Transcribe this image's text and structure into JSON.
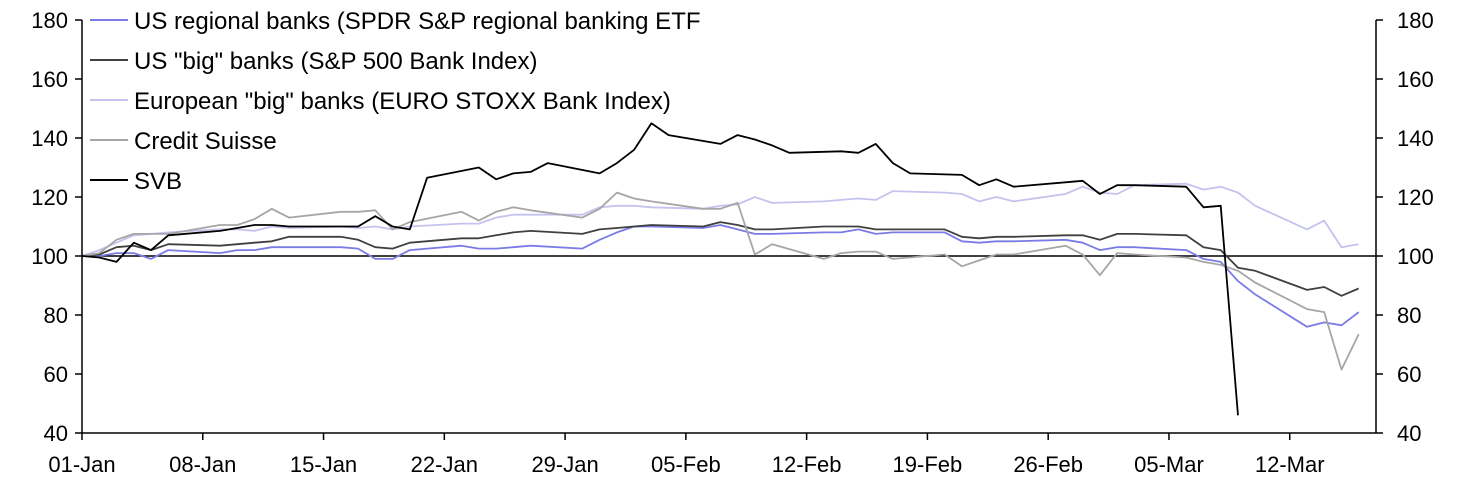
{
  "chart_data": {
    "type": "line",
    "title": "",
    "xlabel": "",
    "ylabel": "",
    "ylim": [
      40,
      180
    ],
    "y_ticks": [
      40,
      60,
      80,
      100,
      120,
      140,
      160,
      180
    ],
    "y_tick_labels": [
      "40",
      "60",
      "80",
      "100",
      "120",
      "140",
      "160",
      "180"
    ],
    "x_ticks": [
      "2023-01-01",
      "2023-01-08",
      "2023-01-15",
      "2023-01-22",
      "2023-01-29",
      "2023-02-05",
      "2023-02-12",
      "2023-02-19",
      "2023-02-26",
      "2023-03-05",
      "2023-03-12"
    ],
    "x_tick_labels": [
      "01-Jan",
      "08-Jan",
      "15-Jan",
      "22-Jan",
      "29-Jan",
      "05-Feb",
      "12-Feb",
      "19-Feb",
      "26-Feb",
      "05-Mar",
      "12-Mar"
    ],
    "xlim": [
      "2023-01-01",
      "2023-03-17"
    ],
    "reference_line": 100,
    "legend_position": "top-left",
    "grid": false,
    "series": [
      {
        "name": "US regional banks (SPDR S&P regional banking ETF",
        "color": "#7b7be6",
        "points": [
          [
            "2023-01-01",
            100
          ],
          [
            "2023-01-02",
            100
          ],
          [
            "2023-01-03",
            101
          ],
          [
            "2023-01-04",
            101
          ],
          [
            "2023-01-05",
            99
          ],
          [
            "2023-01-06",
            102
          ],
          [
            "2023-01-09",
            101
          ],
          [
            "2023-01-10",
            102
          ],
          [
            "2023-01-11",
            102
          ],
          [
            "2023-01-12",
            103
          ],
          [
            "2023-01-13",
            103
          ],
          [
            "2023-01-16",
            103
          ],
          [
            "2023-01-17",
            102.5
          ],
          [
            "2023-01-18",
            99
          ],
          [
            "2023-01-19",
            99
          ],
          [
            "2023-01-20",
            102
          ],
          [
            "2023-01-23",
            103.5
          ],
          [
            "2023-01-24",
            102.5
          ],
          [
            "2023-01-25",
            102.5
          ],
          [
            "2023-01-26",
            103
          ],
          [
            "2023-01-27",
            103.5
          ],
          [
            "2023-01-30",
            102.5
          ],
          [
            "2023-01-31",
            105.5
          ],
          [
            "2023-02-01",
            108
          ],
          [
            "2023-02-02",
            110
          ],
          [
            "2023-02-03",
            110
          ],
          [
            "2023-02-06",
            109.5
          ],
          [
            "2023-02-07",
            110.5
          ],
          [
            "2023-02-08",
            109
          ],
          [
            "2023-02-09",
            107.5
          ],
          [
            "2023-02-10",
            107.5
          ],
          [
            "2023-02-13",
            108
          ],
          [
            "2023-02-14",
            108
          ],
          [
            "2023-02-15",
            109
          ],
          [
            "2023-02-16",
            107.5
          ],
          [
            "2023-02-17",
            108
          ],
          [
            "2023-02-20",
            108
          ],
          [
            "2023-02-21",
            105
          ],
          [
            "2023-02-22",
            104.5
          ],
          [
            "2023-02-23",
            105
          ],
          [
            "2023-02-24",
            105
          ],
          [
            "2023-02-27",
            105.5
          ],
          [
            "2023-02-28",
            104.5
          ],
          [
            "2023-03-01",
            102
          ],
          [
            "2023-03-02",
            103
          ],
          [
            "2023-03-03",
            103
          ],
          [
            "2023-03-06",
            102
          ],
          [
            "2023-03-07",
            99
          ],
          [
            "2023-03-08",
            98
          ],
          [
            "2023-03-09",
            91.5
          ],
          [
            "2023-03-10",
            87
          ],
          [
            "2023-03-13",
            76
          ],
          [
            "2023-03-14",
            77.5
          ],
          [
            "2023-03-15",
            76.5
          ],
          [
            "2023-03-16",
            81
          ]
        ]
      },
      {
        "name": "US \"big\" banks (S&P 500 Bank Index)",
        "color": "#404040",
        "points": [
          [
            "2023-01-01",
            100
          ],
          [
            "2023-01-02",
            100.5
          ],
          [
            "2023-01-03",
            103
          ],
          [
            "2023-01-04",
            103.5
          ],
          [
            "2023-01-05",
            102
          ],
          [
            "2023-01-06",
            104
          ],
          [
            "2023-01-09",
            103.5
          ],
          [
            "2023-01-10",
            104
          ],
          [
            "2023-01-11",
            104.5
          ],
          [
            "2023-01-12",
            105
          ],
          [
            "2023-01-13",
            106.5
          ],
          [
            "2023-01-16",
            106.5
          ],
          [
            "2023-01-17",
            105.5
          ],
          [
            "2023-01-18",
            103
          ],
          [
            "2023-01-19",
            102.5
          ],
          [
            "2023-01-20",
            104.5
          ],
          [
            "2023-01-23",
            106
          ],
          [
            "2023-01-24",
            106
          ],
          [
            "2023-01-25",
            107
          ],
          [
            "2023-01-26",
            108
          ],
          [
            "2023-01-27",
            108.5
          ],
          [
            "2023-01-30",
            107.5
          ],
          [
            "2023-01-31",
            109
          ],
          [
            "2023-02-01",
            109.5
          ],
          [
            "2023-02-02",
            110
          ],
          [
            "2023-02-03",
            110.5
          ],
          [
            "2023-02-06",
            110
          ],
          [
            "2023-02-07",
            111.5
          ],
          [
            "2023-02-08",
            110.5
          ],
          [
            "2023-02-09",
            109
          ],
          [
            "2023-02-10",
            109
          ],
          [
            "2023-02-13",
            110
          ],
          [
            "2023-02-14",
            110
          ],
          [
            "2023-02-15",
            110
          ],
          [
            "2023-02-16",
            109
          ],
          [
            "2023-02-17",
            109
          ],
          [
            "2023-02-20",
            109
          ],
          [
            "2023-02-21",
            106.5
          ],
          [
            "2023-02-22",
            106
          ],
          [
            "2023-02-23",
            106.5
          ],
          [
            "2023-02-24",
            106.5
          ],
          [
            "2023-02-27",
            107
          ],
          [
            "2023-02-28",
            107
          ],
          [
            "2023-03-01",
            105.5
          ],
          [
            "2023-03-02",
            107.5
          ],
          [
            "2023-03-03",
            107.5
          ],
          [
            "2023-03-06",
            107
          ],
          [
            "2023-03-07",
            103
          ],
          [
            "2023-03-08",
            102
          ],
          [
            "2023-03-09",
            96
          ],
          [
            "2023-03-10",
            95
          ],
          [
            "2023-03-13",
            88.5
          ],
          [
            "2023-03-14",
            89.5
          ],
          [
            "2023-03-15",
            86.5
          ],
          [
            "2023-03-16",
            89
          ]
        ]
      },
      {
        "name": "European \"big\" banks (EURO STOXX Bank Index)",
        "color": "#c3c3ee",
        "points": [
          [
            "2023-01-01",
            100
          ],
          [
            "2023-01-02",
            102
          ],
          [
            "2023-01-03",
            104.5
          ],
          [
            "2023-01-04",
            107
          ],
          [
            "2023-01-05",
            107.5
          ],
          [
            "2023-01-06",
            108
          ],
          [
            "2023-01-09",
            109
          ],
          [
            "2023-01-10",
            109
          ],
          [
            "2023-01-11",
            108.5
          ],
          [
            "2023-01-12",
            110
          ],
          [
            "2023-01-13",
            109.5
          ],
          [
            "2023-01-16",
            110
          ],
          [
            "2023-01-17",
            109.5
          ],
          [
            "2023-01-18",
            110
          ],
          [
            "2023-01-19",
            109
          ],
          [
            "2023-01-20",
            110
          ],
          [
            "2023-01-23",
            111
          ],
          [
            "2023-01-24",
            111
          ],
          [
            "2023-01-25",
            113
          ],
          [
            "2023-01-26",
            114
          ],
          [
            "2023-01-27",
            114
          ],
          [
            "2023-01-30",
            114
          ],
          [
            "2023-01-31",
            116.5
          ],
          [
            "2023-02-01",
            117
          ],
          [
            "2023-02-02",
            117
          ],
          [
            "2023-02-03",
            116.5
          ],
          [
            "2023-02-06",
            116
          ],
          [
            "2023-02-07",
            117
          ],
          [
            "2023-02-08",
            117.5
          ],
          [
            "2023-02-09",
            120
          ],
          [
            "2023-02-10",
            118
          ],
          [
            "2023-02-13",
            118.5
          ],
          [
            "2023-02-14",
            119
          ],
          [
            "2023-02-15",
            119.5
          ],
          [
            "2023-02-16",
            119
          ],
          [
            "2023-02-17",
            122
          ],
          [
            "2023-02-20",
            121.5
          ],
          [
            "2023-02-21",
            121
          ],
          [
            "2023-02-22",
            118.5
          ],
          [
            "2023-02-23",
            120
          ],
          [
            "2023-02-24",
            118.5
          ],
          [
            "2023-02-27",
            121
          ],
          [
            "2023-02-28",
            123.5
          ],
          [
            "2023-03-01",
            121.5
          ],
          [
            "2023-03-02",
            121
          ],
          [
            "2023-03-03",
            124
          ],
          [
            "2023-03-06",
            124.5
          ],
          [
            "2023-03-07",
            122.5
          ],
          [
            "2023-03-08",
            123.5
          ],
          [
            "2023-03-09",
            121.5
          ],
          [
            "2023-03-10",
            117
          ],
          [
            "2023-03-13",
            109
          ],
          [
            "2023-03-14",
            112
          ],
          [
            "2023-03-15",
            103
          ],
          [
            "2023-03-16",
            104
          ]
        ]
      },
      {
        "name": "Credit Suisse",
        "color": "#a6a6a6",
        "points": [
          [
            "2023-01-01",
            100
          ],
          [
            "2023-01-02",
            101
          ],
          [
            "2023-01-03",
            105.5
          ],
          [
            "2023-01-04",
            107.5
          ],
          [
            "2023-01-05",
            107.5
          ],
          [
            "2023-01-06",
            107.5
          ],
          [
            "2023-01-09",
            110.5
          ],
          [
            "2023-01-10",
            110.5
          ],
          [
            "2023-01-11",
            112.5
          ],
          [
            "2023-01-12",
            116
          ],
          [
            "2023-01-13",
            113
          ],
          [
            "2023-01-16",
            115
          ],
          [
            "2023-01-17",
            115
          ],
          [
            "2023-01-18",
            115.5
          ],
          [
            "2023-01-19",
            109
          ],
          [
            "2023-01-20",
            111.5
          ],
          [
            "2023-01-23",
            115
          ],
          [
            "2023-01-24",
            112
          ],
          [
            "2023-01-25",
            115
          ],
          [
            "2023-01-26",
            116.5
          ],
          [
            "2023-01-27",
            115.5
          ],
          [
            "2023-01-30",
            113
          ],
          [
            "2023-01-31",
            116
          ],
          [
            "2023-02-01",
            121.5
          ],
          [
            "2023-02-02",
            119.5
          ],
          [
            "2023-02-03",
            118.5
          ],
          [
            "2023-02-06",
            116
          ],
          [
            "2023-02-07",
            116
          ],
          [
            "2023-02-08",
            118
          ],
          [
            "2023-02-09",
            100.5
          ],
          [
            "2023-02-10",
            104
          ],
          [
            "2023-02-13",
            99
          ],
          [
            "2023-02-14",
            101
          ],
          [
            "2023-02-15",
            101.5
          ],
          [
            "2023-02-16",
            101.5
          ],
          [
            "2023-02-17",
            99
          ],
          [
            "2023-02-20",
            100.5
          ],
          [
            "2023-02-21",
            96.5
          ],
          [
            "2023-02-22",
            98.5
          ],
          [
            "2023-02-23",
            100.5
          ],
          [
            "2023-02-24",
            100.5
          ],
          [
            "2023-02-27",
            103.5
          ],
          [
            "2023-02-28",
            100.5
          ],
          [
            "2023-03-01",
            93.5
          ],
          [
            "2023-03-02",
            101
          ],
          [
            "2023-03-03",
            100.5
          ],
          [
            "2023-03-06",
            99.5
          ],
          [
            "2023-03-07",
            98
          ],
          [
            "2023-03-08",
            97
          ],
          [
            "2023-03-09",
            95
          ],
          [
            "2023-03-10",
            91
          ],
          [
            "2023-03-13",
            82
          ],
          [
            "2023-03-14",
            81
          ],
          [
            "2023-03-15",
            61.5
          ],
          [
            "2023-03-16",
            73.5
          ]
        ]
      },
      {
        "name": "SVB",
        "color": "#000000",
        "points": [
          [
            "2023-01-01",
            100
          ],
          [
            "2023-01-02",
            99.5
          ],
          [
            "2023-01-03",
            98
          ],
          [
            "2023-01-04",
            104.5
          ],
          [
            "2023-01-05",
            102
          ],
          [
            "2023-01-06",
            107
          ],
          [
            "2023-01-09",
            108.5
          ],
          [
            "2023-01-10",
            109.5
          ],
          [
            "2023-01-11",
            110.5
          ],
          [
            "2023-01-12",
            110.5
          ],
          [
            "2023-01-13",
            110
          ],
          [
            "2023-01-16",
            110
          ],
          [
            "2023-01-17",
            110
          ],
          [
            "2023-01-18",
            113.5
          ],
          [
            "2023-01-19",
            110
          ],
          [
            "2023-01-20",
            109
          ],
          [
            "2023-01-21",
            126.5
          ],
          [
            "2023-01-24",
            130
          ],
          [
            "2023-01-25",
            126
          ],
          [
            "2023-01-26",
            128
          ],
          [
            "2023-01-27",
            128.5
          ],
          [
            "2023-01-28",
            131.5
          ],
          [
            "2023-01-31",
            128
          ],
          [
            "2023-02-01",
            131.5
          ],
          [
            "2023-02-02",
            136
          ],
          [
            "2023-02-03",
            145
          ],
          [
            "2023-02-04",
            141
          ],
          [
            "2023-02-07",
            138
          ],
          [
            "2023-02-08",
            141
          ],
          [
            "2023-02-09",
            139.5
          ],
          [
            "2023-02-10",
            137.5
          ],
          [
            "2023-02-11",
            135
          ],
          [
            "2023-02-14",
            135.5
          ],
          [
            "2023-02-15",
            135
          ],
          [
            "2023-02-16",
            138
          ],
          [
            "2023-02-17",
            131.5
          ],
          [
            "2023-02-18",
            128
          ],
          [
            "2023-02-21",
            127.5
          ],
          [
            "2023-02-22",
            124
          ],
          [
            "2023-02-23",
            126
          ],
          [
            "2023-02-24",
            123.5
          ],
          [
            "2023-02-27",
            125
          ],
          [
            "2023-02-28",
            125.5
          ],
          [
            "2023-03-01",
            121
          ],
          [
            "2023-03-02",
            124
          ],
          [
            "2023-03-03",
            124
          ],
          [
            "2023-03-06",
            123.5
          ],
          [
            "2023-03-07",
            116.5
          ],
          [
            "2023-03-08",
            117
          ],
          [
            "2023-03-09",
            46
          ]
        ]
      }
    ]
  }
}
